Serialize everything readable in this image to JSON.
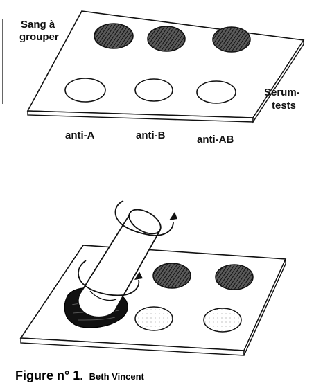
{
  "labels": {
    "sample_blood": [
      "Sang à",
      "grouper"
    ],
    "test_serums": [
      "Sérum-",
      "tests"
    ],
    "serums": [
      "anti-A",
      "anti-B",
      "anti-AB"
    ]
  },
  "caption": {
    "figure": "Figure n° 1.",
    "author": "Beth Vincent"
  },
  "colors": {
    "ink": "#111111",
    "blood_fill": "#3a3a3a",
    "paper": "#ffffff"
  }
}
